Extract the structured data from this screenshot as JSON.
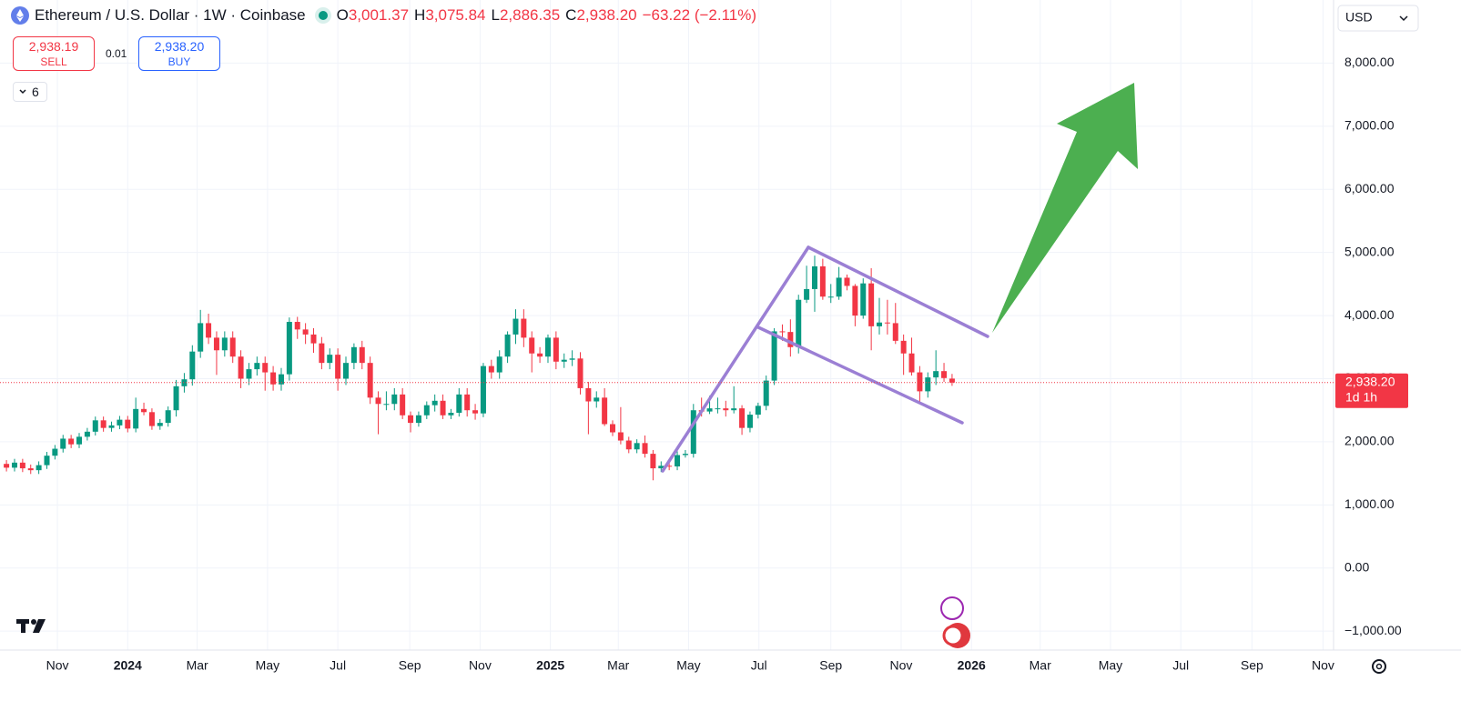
{
  "header": {
    "symbol": "Ethereum / U.S. Dollar · 1W · Coinbase",
    "ohlc": [
      {
        "label": "O",
        "value": "3,001.37"
      },
      {
        "label": "H",
        "value": "3,075.84"
      },
      {
        "label": "L",
        "value": "2,886.35"
      },
      {
        "label": "C",
        "value": "2,938.20"
      }
    ],
    "change": "−63.22 (−2.11%)",
    "currency": "USD"
  },
  "trade": {
    "sell_price": "2,938.19",
    "sell": "SELL",
    "spread": "0.01",
    "buy_price": "2,938.20",
    "buy": "BUY"
  },
  "indicators_count": "6",
  "chart_data": {
    "type": "candlestick",
    "up_color": "#089981",
    "down_color": "#f23645",
    "grid": true,
    "xlim": [
      -0.8,
      164.2
    ],
    "xticks": [
      {
        "value": 6.3,
        "label": "Nov"
      },
      {
        "value": 15,
        "label": "2024"
      },
      {
        "value": 23.6,
        "label": "Mar"
      },
      {
        "value": 32.3,
        "label": "May"
      },
      {
        "value": 41,
        "label": "Jul"
      },
      {
        "value": 49.9,
        "label": "Sep"
      },
      {
        "value": 58.6,
        "label": "Nov"
      },
      {
        "value": 67.3,
        "label": "2025"
      },
      {
        "value": 75.7,
        "label": "Mar"
      },
      {
        "value": 84.4,
        "label": "May"
      },
      {
        "value": 93.1,
        "label": "Jul"
      },
      {
        "value": 102,
        "label": "Sep"
      },
      {
        "value": 110.7,
        "label": "Nov"
      },
      {
        "value": 119.4,
        "label": "2026"
      },
      {
        "value": 127.9,
        "label": "Mar"
      },
      {
        "value": 136.6,
        "label": "May"
      },
      {
        "value": 145.3,
        "label": "Jul"
      },
      {
        "value": 154.1,
        "label": "Sep"
      },
      {
        "value": 162.9,
        "label": "Nov"
      }
    ],
    "ylim": [
      -1300,
      9000
    ],
    "yticks": [
      {
        "value": -1000,
        "label": "−1,000.00"
      },
      {
        "value": 0,
        "label": "0.00"
      },
      {
        "value": 1000,
        "label": "1,000.00"
      },
      {
        "value": 2000,
        "label": "2,000.00"
      },
      {
        "value": 3000,
        "label": "3,000.00"
      },
      {
        "value": 4000,
        "label": "4,000.00"
      },
      {
        "value": 5000,
        "label": "5,000.00"
      },
      {
        "value": 6000,
        "label": "6,000.00"
      },
      {
        "value": 7000,
        "label": "7,000.00"
      },
      {
        "value": 8000,
        "label": "8,000.00"
      }
    ],
    "price_line": {
      "value": 2938.2,
      "label": "2,938.20",
      "countdown": "1d 1h"
    },
    "candles": [
      [
        1650,
        1710,
        1530,
        1590
      ],
      [
        1590,
        1730,
        1530,
        1670
      ],
      [
        1670,
        1730,
        1520,
        1580
      ],
      [
        1580,
        1640,
        1490,
        1550
      ],
      [
        1550,
        1690,
        1490,
        1630
      ],
      [
        1630,
        1840,
        1570,
        1780
      ],
      [
        1780,
        1950,
        1720,
        1890
      ],
      [
        1890,
        2110,
        1830,
        2050
      ],
      [
        2050,
        2110,
        1900,
        1960
      ],
      [
        1960,
        2140,
        1900,
        2080
      ],
      [
        2080,
        2220,
        2020,
        2160
      ],
      [
        2160,
        2400,
        2100,
        2340
      ],
      [
        2340,
        2400,
        2160,
        2220
      ],
      [
        2220,
        2320,
        2160,
        2260
      ],
      [
        2260,
        2410,
        2200,
        2350
      ],
      [
        2350,
        2410,
        2150,
        2210
      ],
      [
        2210,
        2700,
        2150,
        2520
      ],
      [
        2520,
        2620,
        2420,
        2470
      ],
      [
        2470,
        2530,
        2190,
        2250
      ],
      [
        2250,
        2360,
        2190,
        2300
      ],
      [
        2300,
        2560,
        2240,
        2500
      ],
      [
        2500,
        2980,
        2400,
        2880
      ],
      [
        2880,
        3090,
        2780,
        2990
      ],
      [
        2990,
        3530,
        2890,
        3430
      ],
      [
        3430,
        4090,
        3330,
        3880
      ],
      [
        3880,
        4030,
        3550,
        3650
      ],
      [
        3650,
        3750,
        3060,
        3450
      ],
      [
        3450,
        3750,
        3350,
        3650
      ],
      [
        3650,
        3750,
        3250,
        3350
      ],
      [
        3350,
        3450,
        2850,
        3000
      ],
      [
        3000,
        3250,
        2900,
        3150
      ],
      [
        3150,
        3350,
        3050,
        3250
      ],
      [
        3250,
        3350,
        2810,
        3100
      ],
      [
        3100,
        3200,
        2810,
        2910
      ],
      [
        2910,
        3170,
        2810,
        3070
      ],
      [
        3070,
        3970,
        2970,
        3900
      ],
      [
        3900,
        3980,
        3630,
        3780
      ],
      [
        3780,
        3880,
        3550,
        3700
      ],
      [
        3700,
        3800,
        3410,
        3560
      ],
      [
        3560,
        3660,
        3150,
        3250
      ],
      [
        3250,
        3480,
        3150,
        3380
      ],
      [
        3380,
        3480,
        2810,
        3000
      ],
      [
        3000,
        3350,
        2900,
        3250
      ],
      [
        3250,
        3560,
        3150,
        3500
      ],
      [
        3500,
        3600,
        3150,
        3250
      ],
      [
        3250,
        3350,
        2600,
        2700
      ],
      [
        2700,
        2800,
        2120,
        2600
      ],
      [
        2600,
        2800,
        2500,
        2600
      ],
      [
        2600,
        2850,
        2500,
        2750
      ],
      [
        2750,
        2850,
        2360,
        2420
      ],
      [
        2420,
        2480,
        2150,
        2300
      ],
      [
        2300,
        2480,
        2240,
        2420
      ],
      [
        2420,
        2640,
        2360,
        2580
      ],
      [
        2580,
        2750,
        2480,
        2650
      ],
      [
        2650,
        2750,
        2360,
        2420
      ],
      [
        2420,
        2520,
        2360,
        2460
      ],
      [
        2460,
        2850,
        2400,
        2750
      ],
      [
        2750,
        2850,
        2400,
        2500
      ],
      [
        2500,
        2600,
        2350,
        2450
      ],
      [
        2450,
        3250,
        2390,
        3200
      ],
      [
        3200,
        3300,
        3000,
        3100
      ],
      [
        3100,
        3450,
        3000,
        3350
      ],
      [
        3350,
        3750,
        3250,
        3700
      ],
      [
        3700,
        4100,
        3550,
        3950
      ],
      [
        3950,
        4100,
        3500,
        3650
      ],
      [
        3650,
        3750,
        3100,
        3400
      ],
      [
        3400,
        3500,
        3250,
        3350
      ],
      [
        3350,
        3700,
        3250,
        3650
      ],
      [
        3650,
        3750,
        3150,
        3270
      ],
      [
        3270,
        3400,
        3170,
        3300
      ],
      [
        3300,
        3450,
        3200,
        3320
      ],
      [
        3320,
        3420,
        2750,
        2850
      ],
      [
        2850,
        2950,
        2120,
        2640
      ],
      [
        2640,
        2800,
        2540,
        2700
      ],
      [
        2700,
        2850,
        2250,
        2280
      ],
      [
        2280,
        2340,
        2090,
        2150
      ],
      [
        2150,
        2550,
        1960,
        2020
      ],
      [
        2020,
        2080,
        1820,
        1880
      ],
      [
        1880,
        2040,
        1820,
        1980
      ],
      [
        1980,
        2100,
        1750,
        1810
      ],
      [
        1810,
        1870,
        1390,
        1580
      ],
      [
        1580,
        1690,
        1520,
        1620
      ],
      [
        1620,
        1680,
        1550,
        1610
      ],
      [
        1610,
        1850,
        1550,
        1790
      ],
      [
        1790,
        1870,
        1750,
        1810
      ],
      [
        1810,
        2600,
        1750,
        2500
      ],
      [
        2500,
        2700,
        2400,
        2480
      ],
      [
        2480,
        2730,
        2440,
        2530
      ],
      [
        2530,
        2700,
        2450,
        2530
      ],
      [
        2530,
        2650,
        2400,
        2500
      ],
      [
        2500,
        2880,
        2450,
        2530
      ],
      [
        2530,
        2580,
        2110,
        2220
      ],
      [
        2220,
        2480,
        2150,
        2430
      ],
      [
        2430,
        2620,
        2370,
        2570
      ],
      [
        2570,
        3050,
        2500,
        2970
      ],
      [
        2970,
        3800,
        2900,
        3750
      ],
      [
        3750,
        3860,
        3600,
        3740
      ],
      [
        3740,
        3940,
        3350,
        3500
      ],
      [
        3500,
        4330,
        3400,
        4250
      ],
      [
        4250,
        4790,
        4200,
        4420
      ],
      [
        4420,
        4950,
        4060,
        4780
      ],
      [
        4780,
        4900,
        4250,
        4300
      ],
      [
        4300,
        4500,
        4200,
        4300
      ],
      [
        4300,
        4770,
        4250,
        4600
      ],
      [
        4600,
        4650,
        4400,
        4470
      ],
      [
        4470,
        4500,
        3830,
        4000
      ],
      [
        4000,
        4590,
        3950,
        4510
      ],
      [
        4510,
        4750,
        3450,
        3830
      ],
      [
        3830,
        4280,
        3700,
        3890
      ],
      [
        3890,
        4250,
        3700,
        3880
      ],
      [
        3880,
        4200,
        3550,
        3600
      ],
      [
        3600,
        3700,
        3060,
        3400
      ],
      [
        3400,
        3650,
        3050,
        3100
      ],
      [
        3100,
        3200,
        2620,
        2800
      ],
      [
        2800,
        3100,
        2700,
        3020
      ],
      [
        3020,
        3450,
        2900,
        3120
      ],
      [
        3120,
        3250,
        2950,
        3010
      ],
      [
        3001.37,
        3075.84,
        2886.35,
        2938.2
      ]
    ]
  }
}
